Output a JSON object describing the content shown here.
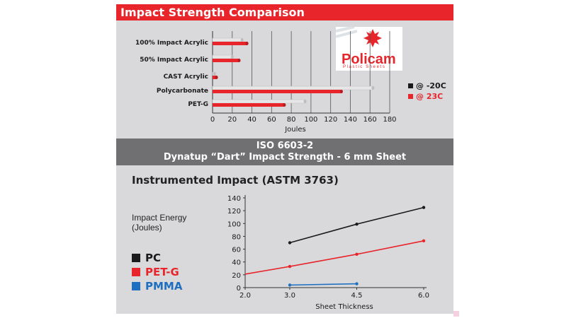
{
  "header": {
    "title": "Impact Strength Comparison"
  },
  "logo": {
    "name": "Policam",
    "tagline": "Plastic Sheets",
    "icon": "snowflake-logo-icon"
  },
  "band": {
    "line1": "ISO 6603-2",
    "line2": "Dynatup “Dart” Impact Strength - 6 mm Sheet"
  },
  "colors": {
    "accent": "#e8252a",
    "dark": "#1a1a1a",
    "blue": "#1f6fc0",
    "bar_light": "#e6e6e6"
  },
  "chart_data": [
    {
      "type": "bar",
      "orientation": "horizontal",
      "title": "",
      "categories": [
        "100% Impact Acrylic",
        "50% Impact Acrylic",
        "CAST Acrylic",
        "Polycarbonate",
        "PET-G"
      ],
      "series": [
        {
          "name": "@ -20C",
          "values": [
            30,
            20,
            2,
            163,
            94
          ]
        },
        {
          "name": "@ 23C",
          "values": [
            35,
            27,
            4,
            131,
            73
          ]
        }
      ],
      "xlabel": "Joules",
      "xlim": [
        0,
        180
      ],
      "xticks": [
        0,
        20,
        40,
        60,
        80,
        100,
        120,
        140,
        160,
        180
      ],
      "grid": true,
      "legend": "right"
    },
    {
      "type": "line",
      "title": "Instrumented Impact (ASTM 3763)",
      "xlabel": "Sheet Thickness",
      "ylabel": "Impact Energy (Joules)",
      "xticks": [
        "2.0",
        "3.0",
        "4.5",
        "6.0"
      ],
      "xlim": [
        2.0,
        6.0
      ],
      "ylim": [
        0,
        140
      ],
      "yticks": [
        0,
        20,
        40,
        60,
        80,
        100,
        120,
        140
      ],
      "series": [
        {
          "name": "PC",
          "x": [
            3.0,
            4.5,
            6.0
          ],
          "values": [
            70,
            99,
            125
          ]
        },
        {
          "name": "PET-G",
          "x": [
            2.0,
            3.0,
            4.5,
            6.0
          ],
          "values": [
            21,
            33,
            52,
            73
          ]
        },
        {
          "name": "PMMA",
          "x": [
            3.0,
            4.5
          ],
          "values": [
            4,
            6
          ]
        }
      ],
      "grid": false,
      "legend": "left"
    }
  ]
}
